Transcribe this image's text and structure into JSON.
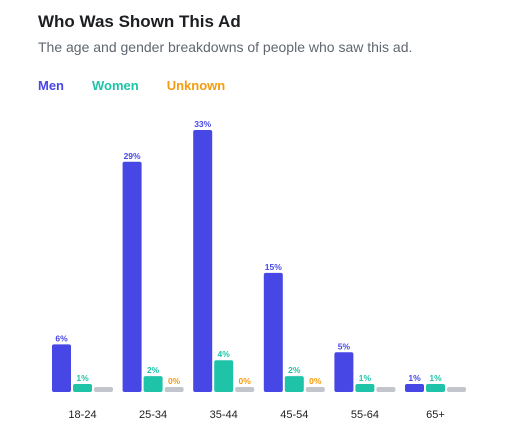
{
  "header": {
    "title": "Who Was Shown This Ad",
    "subtitle": "The age and gender breakdowns of people who saw this ad."
  },
  "colors": {
    "men": "#4747e6",
    "women": "#1fc4a8",
    "unknown": "#f59b0f",
    "unknown_bar": "#c2c5cc",
    "axis_label": "#1c1e21"
  },
  "chart_data": {
    "type": "bar",
    "title": "Who Was Shown This Ad",
    "subtitle": "The age and gender breakdowns of people who saw this ad.",
    "categories": [
      "18-24",
      "25-34",
      "35-44",
      "45-54",
      "55-64",
      "65+"
    ],
    "series": [
      {
        "name": "Men",
        "values": [
          6,
          29,
          33,
          15,
          5,
          1
        ],
        "labels": [
          "6%",
          "29%",
          "33%",
          "15%",
          "5%",
          "1%"
        ]
      },
      {
        "name": "Women",
        "values": [
          1,
          2,
          4,
          2,
          1,
          1
        ],
        "labels": [
          "1%",
          "2%",
          "4%",
          "2%",
          "1%",
          "1%"
        ]
      },
      {
        "name": "Unknown",
        "values": [
          0,
          0,
          0,
          0,
          0,
          0
        ],
        "labels": [
          "",
          "0%",
          "0%",
          "0%",
          "",
          ""
        ]
      }
    ],
    "ylim": [
      0,
      33
    ],
    "grid": false,
    "legend": "top-left"
  }
}
